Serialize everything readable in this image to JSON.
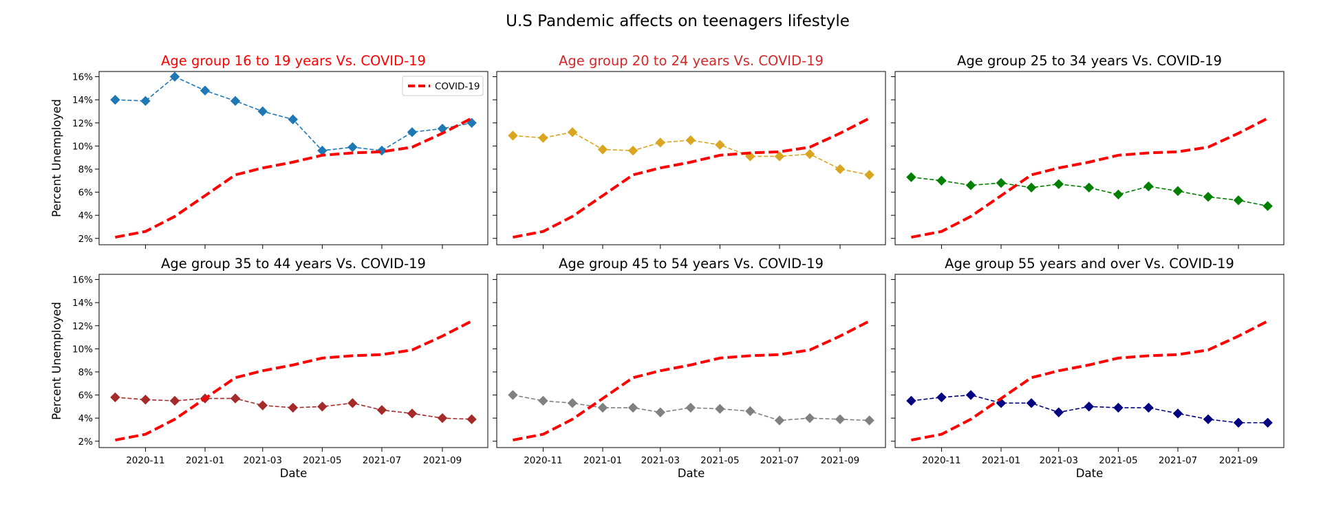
{
  "figure": {
    "title": "U.S Pandemic affects on teenagers lifestyle"
  },
  "chart_data": {
    "type": "line",
    "ylim": [
      0.0145,
      0.1645
    ],
    "y_ticks": [
      0.02,
      0.04,
      0.06,
      0.08,
      0.1,
      0.12,
      0.14,
      0.16
    ],
    "y_tick_labels": [
      "2%",
      "4%",
      "6%",
      "8%",
      "10%",
      "12%",
      "14%",
      "16%"
    ],
    "x_dates": [
      "2020-10",
      "2020-11",
      "2020-12",
      "2021-01",
      "2021-02",
      "2021-03",
      "2021-04",
      "2021-05",
      "2021-06",
      "2021-07",
      "2021-08",
      "2021-09",
      "2021-10"
    ],
    "x_tick_labels": [
      "2020-11",
      "2021-01",
      "2021-03",
      "2021-05",
      "2021-07",
      "2021-09"
    ],
    "ylabel": "Percent Unemployed",
    "xlabel": "Date",
    "covid_series": {
      "name": "COVID-19",
      "color": "#ff0000",
      "style": "dashed",
      "values": [
        0.021,
        0.026,
        0.039,
        0.057,
        0.075,
        0.081,
        0.086,
        0.092,
        0.094,
        0.095,
        0.099,
        0.111,
        0.124
      ]
    },
    "legend": {
      "label": "COVID-19",
      "placement": "upper right",
      "panel": 0
    },
    "grid": false,
    "panels": [
      {
        "title": "Age group 16 to 19 years Vs. COVID-19",
        "title_color": "#ff0000",
        "series_color": "#1f77b4",
        "values": [
          0.14,
          0.139,
          0.16,
          0.148,
          0.139,
          0.13,
          0.123,
          0.096,
          0.099,
          0.096,
          0.112,
          0.115,
          0.12
        ]
      },
      {
        "title": "Age group 20 to 24 years Vs. COVID-19",
        "title_color": "#d62728",
        "series_color": "#daa520",
        "values": [
          0.109,
          0.107,
          0.112,
          0.097,
          0.096,
          0.103,
          0.105,
          0.101,
          0.091,
          0.091,
          0.093,
          0.08,
          0.075
        ]
      },
      {
        "title": "Age group 25 to 34 years Vs. COVID-19",
        "title_color": "#000000",
        "series_color": "#008000",
        "values": [
          0.073,
          0.07,
          0.066,
          0.068,
          0.064,
          0.067,
          0.064,
          0.058,
          0.065,
          0.061,
          0.056,
          0.053,
          0.048
        ]
      },
      {
        "title": "Age group 35 to 44 years Vs. COVID-19",
        "title_color": "#000000",
        "series_color": "#a52a2a",
        "values": [
          0.058,
          0.056,
          0.055,
          0.057,
          0.057,
          0.051,
          0.049,
          0.05,
          0.053,
          0.047,
          0.044,
          0.04,
          0.039
        ]
      },
      {
        "title": "Age group 45 to 54 years Vs. COVID-19",
        "title_color": "#000000",
        "series_color": "#808080",
        "values": [
          0.06,
          0.055,
          0.053,
          0.049,
          0.049,
          0.045,
          0.049,
          0.048,
          0.046,
          0.038,
          0.04,
          0.039,
          0.038
        ]
      },
      {
        "title": "Age group 55 years and over Vs. COVID-19",
        "title_color": "#000000",
        "series_color": "#000080",
        "values": [
          0.055,
          0.058,
          0.06,
          0.053,
          0.053,
          0.045,
          0.05,
          0.049,
          0.049,
          0.044,
          0.039,
          0.036,
          0.036
        ]
      }
    ]
  }
}
